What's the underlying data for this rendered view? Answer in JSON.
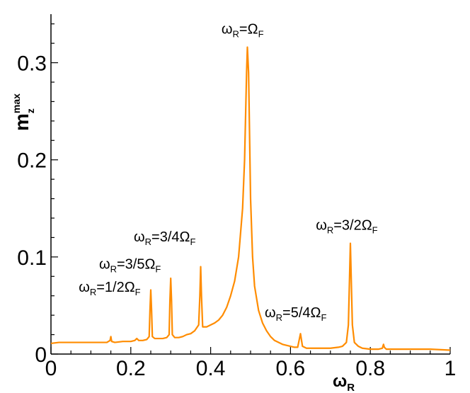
{
  "chart_data": {
    "type": "line",
    "title": "",
    "xlabel": {
      "main": "ω",
      "sub": "R"
    },
    "ylabel": {
      "main": "m",
      "sub": "z",
      "sup": "max"
    },
    "xlim": [
      0,
      1
    ],
    "ylim": [
      0,
      0.35
    ],
    "grid": false,
    "x_ticks": [
      0,
      0.2,
      0.4,
      0.6,
      0.8,
      1
    ],
    "x_tick_labels": [
      "0",
      "0.2",
      "0.4",
      "0.6",
      "0.8",
      "1"
    ],
    "y_ticks": [
      0,
      0.1,
      0.2,
      0.3
    ],
    "y_tick_labels": [
      "0",
      "0.1",
      "0.2",
      "0.3"
    ],
    "series": [
      {
        "color": "#ff8c00",
        "x": [
          0,
          0.02,
          0.05,
          0.08,
          0.1,
          0.12,
          0.14,
          0.148,
          0.15,
          0.152,
          0.16,
          0.18,
          0.2,
          0.21,
          0.215,
          0.22,
          0.23,
          0.24,
          0.246,
          0.248,
          0.25,
          0.252,
          0.254,
          0.26,
          0.27,
          0.28,
          0.29,
          0.296,
          0.298,
          0.3,
          0.302,
          0.304,
          0.31,
          0.32,
          0.33,
          0.34,
          0.35,
          0.36,
          0.37,
          0.373,
          0.375,
          0.377,
          0.38,
          0.39,
          0.4,
          0.41,
          0.42,
          0.43,
          0.44,
          0.45,
          0.46,
          0.47,
          0.48,
          0.485,
          0.49,
          0.492,
          0.495,
          0.5,
          0.505,
          0.51,
          0.52,
          0.53,
          0.54,
          0.55,
          0.56,
          0.58,
          0.6,
          0.61,
          0.618,
          0.622,
          0.625,
          0.63,
          0.64,
          0.66,
          0.68,
          0.7,
          0.72,
          0.73,
          0.74,
          0.745,
          0.748,
          0.75,
          0.752,
          0.755,
          0.76,
          0.77,
          0.78,
          0.8,
          0.82,
          0.83,
          0.833,
          0.835,
          0.84,
          0.85,
          0.88,
          0.9,
          0.95,
          1.0
        ],
        "y": [
          0.011,
          0.012,
          0.012,
          0.012,
          0.012,
          0.012,
          0.012,
          0.014,
          0.018,
          0.013,
          0.012,
          0.013,
          0.013,
          0.014,
          0.016,
          0.014,
          0.014,
          0.015,
          0.018,
          0.045,
          0.066,
          0.045,
          0.018,
          0.016,
          0.016,
          0.016,
          0.017,
          0.02,
          0.055,
          0.078,
          0.055,
          0.02,
          0.017,
          0.017,
          0.018,
          0.02,
          0.021,
          0.024,
          0.03,
          0.06,
          0.09,
          0.06,
          0.028,
          0.028,
          0.03,
          0.032,
          0.035,
          0.04,
          0.048,
          0.06,
          0.075,
          0.1,
          0.15,
          0.2,
          0.29,
          0.316,
          0.29,
          0.16,
          0.1,
          0.07,
          0.045,
          0.032,
          0.024,
          0.018,
          0.014,
          0.01,
          0.008,
          0.007,
          0.007,
          0.015,
          0.021,
          0.008,
          0.006,
          0.006,
          0.006,
          0.006,
          0.007,
          0.008,
          0.012,
          0.03,
          0.08,
          0.114,
          0.08,
          0.03,
          0.012,
          0.008,
          0.006,
          0.005,
          0.005,
          0.006,
          0.01,
          0.007,
          0.005,
          0.005,
          0.005,
          0.005,
          0.005,
          0.004
        ]
      }
    ],
    "annotations": [
      {
        "main": "ω",
        "sub": "R",
        "rest": "=Ω",
        "sub2": "F",
        "x": 0.48,
        "y": 0.33
      },
      {
        "main": "ω",
        "sub": "R",
        "rest": "=3/4Ω",
        "sub2": "F",
        "x": 0.285,
        "y": 0.116
      },
      {
        "main": "ω",
        "sub": "R",
        "rest": "=3/5Ω",
        "sub2": "F",
        "x": 0.198,
        "y": 0.088
      },
      {
        "main": "ω",
        "sub": "R",
        "rest": "=1/2Ω",
        "sub2": "F",
        "x": 0.147,
        "y": 0.064
      },
      {
        "main": "ω",
        "sub": "R",
        "rest": "=5/4Ω",
        "sub2": "F",
        "x": 0.613,
        "y": 0.038
      },
      {
        "main": "ω",
        "sub": "R",
        "rest": "=3/2Ω",
        "sub2": "F",
        "x": 0.741,
        "y": 0.128
      }
    ]
  }
}
